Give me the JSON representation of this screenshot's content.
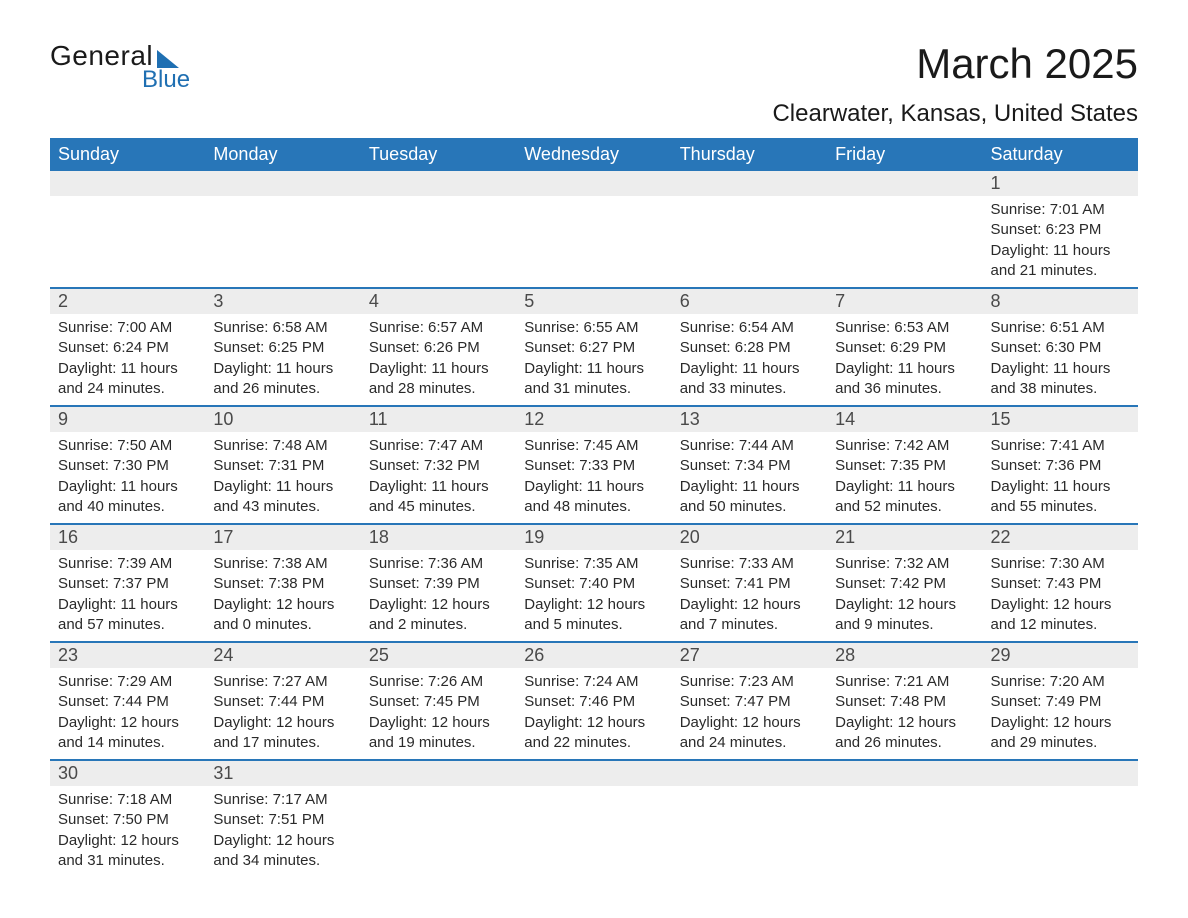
{
  "logo": {
    "text1": "General",
    "text2": "Blue",
    "accent_color": "#1f6fb2"
  },
  "title": "March 2025",
  "location": "Clearwater, Kansas, United States",
  "header_bg": "#2876b8",
  "header_text_color": "#ffffff",
  "daynum_bg": "#ededed",
  "row_border_color": "#2876b8",
  "day_headers": [
    "Sunday",
    "Monday",
    "Tuesday",
    "Wednesday",
    "Thursday",
    "Friday",
    "Saturday"
  ],
  "weeks": [
    [
      null,
      null,
      null,
      null,
      null,
      null,
      {
        "n": "1",
        "sunrise": "7:01 AM",
        "sunset": "6:23 PM",
        "daylight": "11 hours and 21 minutes."
      }
    ],
    [
      {
        "n": "2",
        "sunrise": "7:00 AM",
        "sunset": "6:24 PM",
        "daylight": "11 hours and 24 minutes."
      },
      {
        "n": "3",
        "sunrise": "6:58 AM",
        "sunset": "6:25 PM",
        "daylight": "11 hours and 26 minutes."
      },
      {
        "n": "4",
        "sunrise": "6:57 AM",
        "sunset": "6:26 PM",
        "daylight": "11 hours and 28 minutes."
      },
      {
        "n": "5",
        "sunrise": "6:55 AM",
        "sunset": "6:27 PM",
        "daylight": "11 hours and 31 minutes."
      },
      {
        "n": "6",
        "sunrise": "6:54 AM",
        "sunset": "6:28 PM",
        "daylight": "11 hours and 33 minutes."
      },
      {
        "n": "7",
        "sunrise": "6:53 AM",
        "sunset": "6:29 PM",
        "daylight": "11 hours and 36 minutes."
      },
      {
        "n": "8",
        "sunrise": "6:51 AM",
        "sunset": "6:30 PM",
        "daylight": "11 hours and 38 minutes."
      }
    ],
    [
      {
        "n": "9",
        "sunrise": "7:50 AM",
        "sunset": "7:30 PM",
        "daylight": "11 hours and 40 minutes."
      },
      {
        "n": "10",
        "sunrise": "7:48 AM",
        "sunset": "7:31 PM",
        "daylight": "11 hours and 43 minutes."
      },
      {
        "n": "11",
        "sunrise": "7:47 AM",
        "sunset": "7:32 PM",
        "daylight": "11 hours and 45 minutes."
      },
      {
        "n": "12",
        "sunrise": "7:45 AM",
        "sunset": "7:33 PM",
        "daylight": "11 hours and 48 minutes."
      },
      {
        "n": "13",
        "sunrise": "7:44 AM",
        "sunset": "7:34 PM",
        "daylight": "11 hours and 50 minutes."
      },
      {
        "n": "14",
        "sunrise": "7:42 AM",
        "sunset": "7:35 PM",
        "daylight": "11 hours and 52 minutes."
      },
      {
        "n": "15",
        "sunrise": "7:41 AM",
        "sunset": "7:36 PM",
        "daylight": "11 hours and 55 minutes."
      }
    ],
    [
      {
        "n": "16",
        "sunrise": "7:39 AM",
        "sunset": "7:37 PM",
        "daylight": "11 hours and 57 minutes."
      },
      {
        "n": "17",
        "sunrise": "7:38 AM",
        "sunset": "7:38 PM",
        "daylight": "12 hours and 0 minutes."
      },
      {
        "n": "18",
        "sunrise": "7:36 AM",
        "sunset": "7:39 PM",
        "daylight": "12 hours and 2 minutes."
      },
      {
        "n": "19",
        "sunrise": "7:35 AM",
        "sunset": "7:40 PM",
        "daylight": "12 hours and 5 minutes."
      },
      {
        "n": "20",
        "sunrise": "7:33 AM",
        "sunset": "7:41 PM",
        "daylight": "12 hours and 7 minutes."
      },
      {
        "n": "21",
        "sunrise": "7:32 AM",
        "sunset": "7:42 PM",
        "daylight": "12 hours and 9 minutes."
      },
      {
        "n": "22",
        "sunrise": "7:30 AM",
        "sunset": "7:43 PM",
        "daylight": "12 hours and 12 minutes."
      }
    ],
    [
      {
        "n": "23",
        "sunrise": "7:29 AM",
        "sunset": "7:44 PM",
        "daylight": "12 hours and 14 minutes."
      },
      {
        "n": "24",
        "sunrise": "7:27 AM",
        "sunset": "7:44 PM",
        "daylight": "12 hours and 17 minutes."
      },
      {
        "n": "25",
        "sunrise": "7:26 AM",
        "sunset": "7:45 PM",
        "daylight": "12 hours and 19 minutes."
      },
      {
        "n": "26",
        "sunrise": "7:24 AM",
        "sunset": "7:46 PM",
        "daylight": "12 hours and 22 minutes."
      },
      {
        "n": "27",
        "sunrise": "7:23 AM",
        "sunset": "7:47 PM",
        "daylight": "12 hours and 24 minutes."
      },
      {
        "n": "28",
        "sunrise": "7:21 AM",
        "sunset": "7:48 PM",
        "daylight": "12 hours and 26 minutes."
      },
      {
        "n": "29",
        "sunrise": "7:20 AM",
        "sunset": "7:49 PM",
        "daylight": "12 hours and 29 minutes."
      }
    ],
    [
      {
        "n": "30",
        "sunrise": "7:18 AM",
        "sunset": "7:50 PM",
        "daylight": "12 hours and 31 minutes."
      },
      {
        "n": "31",
        "sunrise": "7:17 AM",
        "sunset": "7:51 PM",
        "daylight": "12 hours and 34 minutes."
      },
      null,
      null,
      null,
      null,
      null
    ]
  ],
  "labels": {
    "sunrise_prefix": "Sunrise: ",
    "sunset_prefix": "Sunset: ",
    "daylight_prefix": "Daylight: "
  }
}
